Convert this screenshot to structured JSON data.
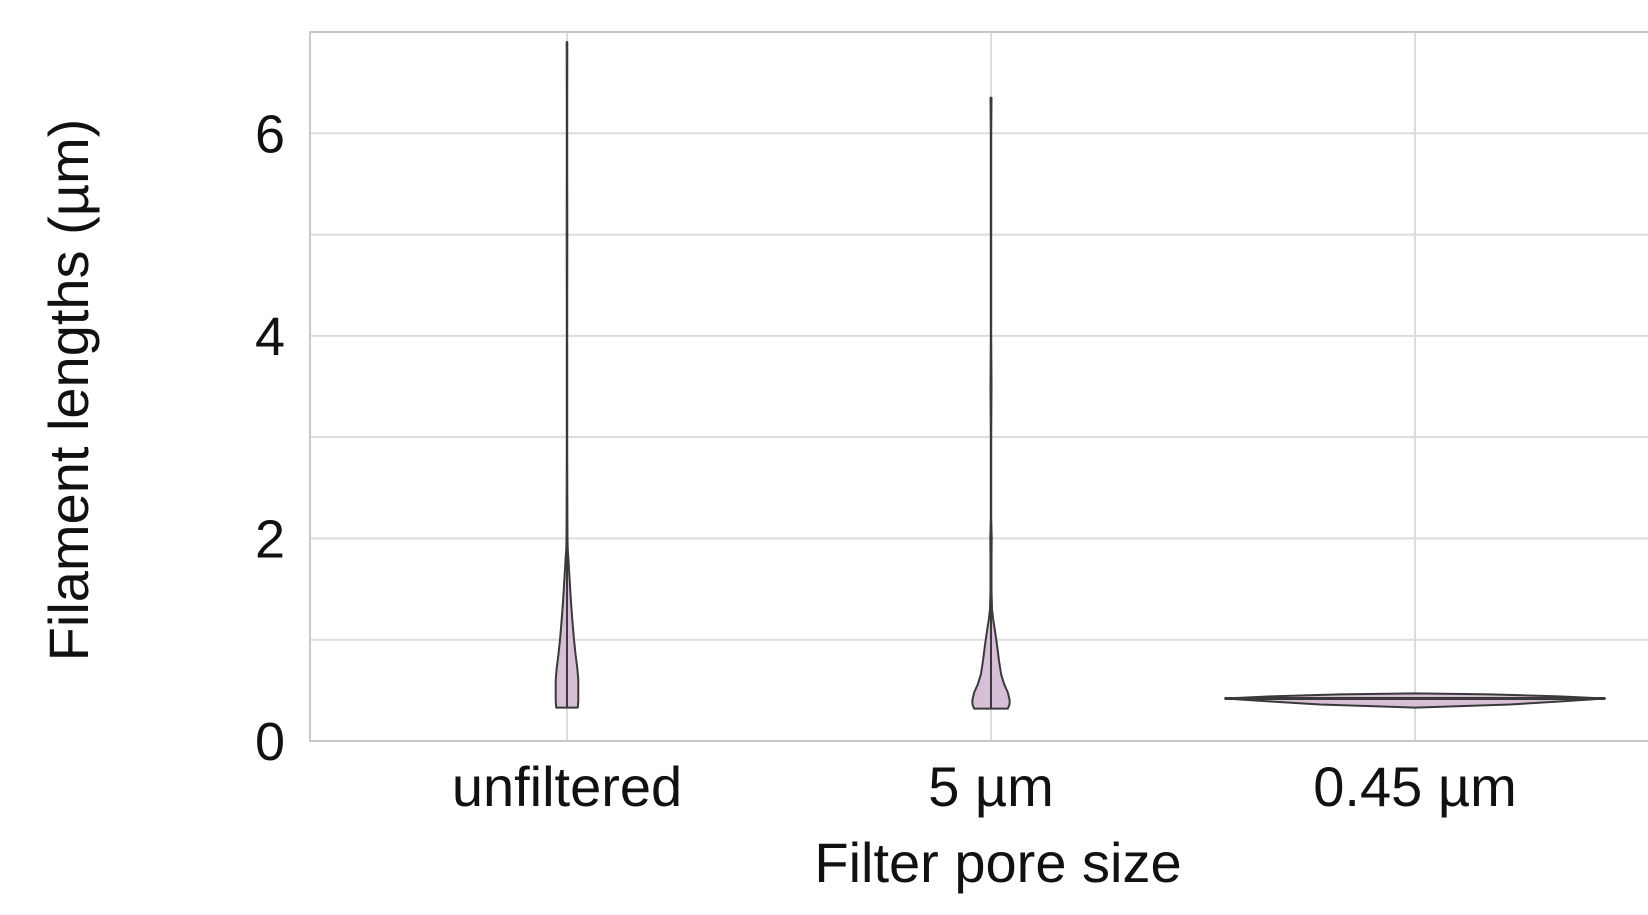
{
  "chart_data": {
    "type": "violin",
    "title": "",
    "xlabel": "Filter pore size",
    "ylabel": "Filament lengths (µm)",
    "categories": [
      "unfiltered",
      "5 µm",
      "0.45 µm"
    ],
    "ylim": [
      0,
      7
    ],
    "yticks": [
      0,
      2,
      4,
      6
    ],
    "y_minor_gridlines": [
      1,
      3,
      5,
      7
    ],
    "grid": true,
    "legend": "none",
    "colors": {
      "violin_fill": "#d8bfd8",
      "violin_edge": "#3a3a3a",
      "grid": "#dcdcdc",
      "frame": "#c8c8c8"
    },
    "violins": [
      {
        "category": "unfiltered",
        "min": 0.33,
        "max": 6.9,
        "profile": [
          [
            0.33,
            0.45
          ],
          [
            0.4,
            0.47
          ],
          [
            0.5,
            0.47
          ],
          [
            0.6,
            0.47
          ],
          [
            0.72,
            0.43
          ],
          [
            0.85,
            0.36
          ],
          [
            1.0,
            0.29
          ],
          [
            1.2,
            0.22
          ],
          [
            1.4,
            0.16
          ],
          [
            1.6,
            0.11
          ],
          [
            1.8,
            0.06
          ],
          [
            1.9,
            0.03
          ],
          [
            2.0,
            0.02
          ],
          [
            2.2,
            0.015
          ],
          [
            2.5,
            0.012
          ],
          [
            3.0,
            0.01
          ],
          [
            4.0,
            0.01
          ],
          [
            5.0,
            0.012
          ],
          [
            6.0,
            0.01
          ],
          [
            6.9,
            0.012
          ]
        ]
      },
      {
        "category": "5 µm",
        "min": 0.32,
        "max": 6.35,
        "profile": [
          [
            0.32,
            0.7
          ],
          [
            0.36,
            0.77
          ],
          [
            0.4,
            0.78
          ],
          [
            0.48,
            0.7
          ],
          [
            0.56,
            0.55
          ],
          [
            0.66,
            0.42
          ],
          [
            0.8,
            0.33
          ],
          [
            0.95,
            0.25
          ],
          [
            1.1,
            0.16
          ],
          [
            1.2,
            0.09
          ],
          [
            1.3,
            0.04
          ],
          [
            1.5,
            0.02
          ],
          [
            1.8,
            0.02
          ],
          [
            2.0,
            0.03
          ],
          [
            2.2,
            0.01
          ],
          [
            3.0,
            0.01
          ],
          [
            3.5,
            0.02
          ],
          [
            4.0,
            0.01
          ],
          [
            5.0,
            0.01
          ],
          [
            6.0,
            0.01
          ],
          [
            6.35,
            0.02
          ]
        ]
      },
      {
        "category": "0.45 µm",
        "min": 0.33,
        "max": 0.47,
        "profile": [
          [
            0.33,
            0.0
          ],
          [
            0.36,
            0.5
          ],
          [
            0.39,
            0.76
          ],
          [
            0.42,
            1.0
          ],
          [
            0.44,
            0.76
          ],
          [
            0.46,
            0.4
          ],
          [
            0.47,
            0.0
          ]
        ]
      }
    ]
  }
}
